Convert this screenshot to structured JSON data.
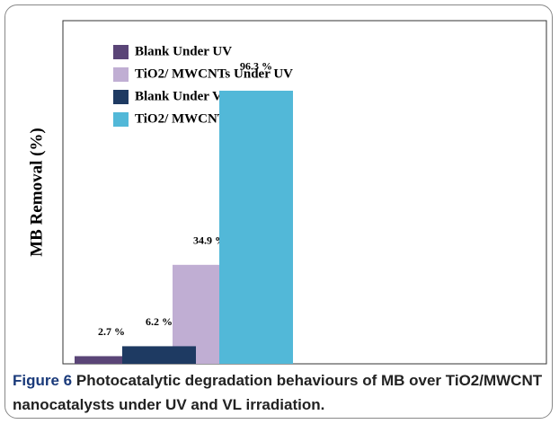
{
  "chart_data": {
    "type": "bar",
    "y_label": "MB Removal (%)",
    "categories": [
      null,
      null
    ],
    "series": [
      {
        "name": "Blank Under UV",
        "color": "#5a4577",
        "values": [
          2.7,
          null
        ],
        "value_labels": [
          "2.7 %",
          null
        ]
      },
      {
        "name": "TiO2/ MWCNTs Under UV",
        "color": "#c0aed3",
        "values": [
          34.9,
          null
        ],
        "value_labels": [
          "34.9 %",
          null
        ]
      },
      {
        "name": "Blank Under VL",
        "color": "#1e3a62",
        "values": [
          null,
          6.2
        ],
        "value_labels": [
          null,
          "6.2 %"
        ]
      },
      {
        "name": "TiO2/ MWCNTs Under VL",
        "color": "#52b8d8",
        "values": [
          null,
          96.3
        ],
        "value_labels": [
          null,
          "96.3 %"
        ]
      }
    ],
    "ylim": [
      0,
      121
    ],
    "legend": "upper-left"
  },
  "caption": {
    "label": "Figure 6",
    "text": "Photocatalytic degradation behaviours of MB over TiO2/MWCNT nanocatalysts under UV and VL irradiation."
  }
}
